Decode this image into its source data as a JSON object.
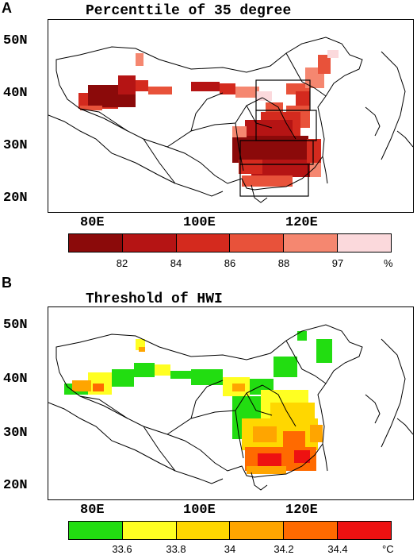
{
  "panels": [
    {
      "letter": "A",
      "title": "Percenttile of 35 degree",
      "lat_labels": [
        "50N",
        "40N",
        "30N",
        "20N"
      ],
      "lon_labels": [
        "80E",
        "100E",
        "120E"
      ],
      "colorbar": {
        "colors": [
          "#8b0a0a",
          "#b51414",
          "#d42a1e",
          "#e8523a",
          "#f58770",
          "#fbd9dc"
        ],
        "ticks": [
          "82",
          "84",
          "86",
          "88",
          "97"
        ],
        "unit": "%"
      }
    },
    {
      "letter": "B",
      "title": "Threshold of HWI",
      "lat_labels": [
        "50N",
        "40N",
        "30N",
        "20N"
      ],
      "lon_labels": [
        "80E",
        "100E",
        "120E"
      ],
      "colorbar": {
        "colors": [
          "#22dd11",
          "#ffff22",
          "#ffd700",
          "#ffa500",
          "#ff6a00",
          "#ee1111"
        ],
        "ticks": [
          "33.6",
          "33.8",
          "34",
          "34.2",
          "34.4"
        ],
        "unit": "°C"
      }
    }
  ]
}
